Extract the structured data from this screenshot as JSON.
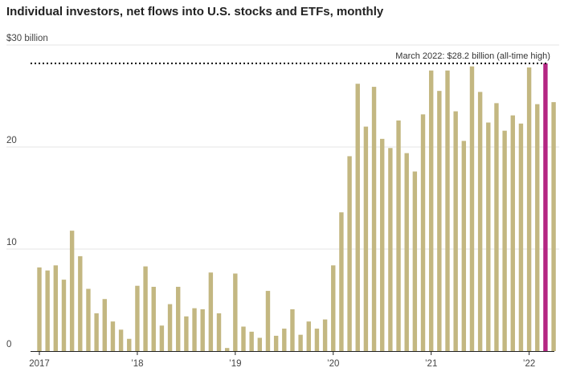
{
  "chart_data": {
    "type": "bar",
    "title": "Individual investors, net flows into U.S. stocks and ETFs, monthly",
    "ylabel": "",
    "xlabel": "",
    "ylim": [
      0,
      30
    ],
    "y_ticks": [
      {
        "value": 30,
        "label": "$30 billion"
      },
      {
        "value": 20,
        "label": "20"
      },
      {
        "value": 10,
        "label": "10"
      },
      {
        "value": 0,
        "label": "0"
      }
    ],
    "x_ticks": [
      {
        "index": 0,
        "label": "2017"
      },
      {
        "index": 12,
        "label": "’18"
      },
      {
        "index": 24,
        "label": "’19"
      },
      {
        "index": 36,
        "label": "’20"
      },
      {
        "index": 48,
        "label": "’21"
      },
      {
        "index": 60,
        "label": "’22"
      }
    ],
    "bar_color": "#c3b781",
    "highlight_color": "#b42683",
    "highlight_index": 62,
    "reference_line": {
      "value": 28.2,
      "label": "March 2022: $28.2 billion (all-time high)",
      "style": "dotted"
    },
    "grid": true,
    "values": [
      8.2,
      7.9,
      8.4,
      7.0,
      11.8,
      9.3,
      6.1,
      3.7,
      5.1,
      2.9,
      2.1,
      1.2,
      6.4,
      8.3,
      6.3,
      2.5,
      4.6,
      6.3,
      3.4,
      4.2,
      4.1,
      7.7,
      3.7,
      0.3,
      7.6,
      2.4,
      1.9,
      1.3,
      5.9,
      1.5,
      2.2,
      4.1,
      1.6,
      2.9,
      2.2,
      3.1,
      8.4,
      13.6,
      19.1,
      26.2,
      22.0,
      25.9,
      20.8,
      19.9,
      22.6,
      19.4,
      17.6,
      23.2,
      27.5,
      25.5,
      27.5,
      23.5,
      20.6,
      27.9,
      25.4,
      22.4,
      24.3,
      21.6,
      23.1,
      22.3,
      27.8,
      24.2,
      28.2,
      24.4
    ]
  }
}
